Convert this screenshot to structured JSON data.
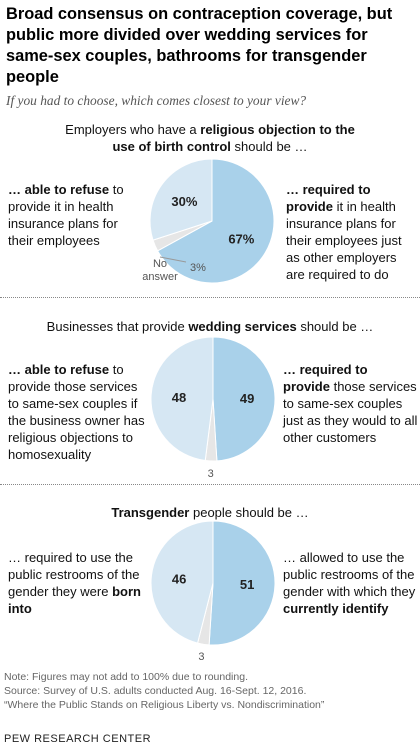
{
  "title": "Broad consensus on contraception coverage, but public more divided over wedding services for same-sex couples, bathrooms for transgender people",
  "subtitle": "If you had to choose, which comes closest to your view?",
  "colors": {
    "dark": "#a9d1ea",
    "light": "#d6e7f3",
    "tiny": "#e6e6e6",
    "line": "#999999"
  },
  "panels": [
    {
      "heading_pre": "Employers who have a ",
      "heading_bold": "religious objection to the use of birth control",
      "heading_post": " should be …",
      "left_bold": "… able to refuse",
      "left_rest": " to provide it in health insurance plans for their employees",
      "right_bold": "… required to provide",
      "right_rest": " it in health insurance plans for their employees just as other employers are required to do",
      "noanswer_label": "No answer"
    },
    {
      "heading_pre": "Businesses that provide ",
      "heading_bold": "wedding services",
      "heading_post": " should be …",
      "left_bold": "… able to refuse",
      "left_rest": " to provide those services to same-sex couples if the business owner has religious objections to homosexuality",
      "right_bold": "… required to provide",
      "right_rest": " those services to same-sex couples just as they would to all other customers"
    },
    {
      "heading_pre": "",
      "heading_bold": "Transgender",
      "heading_post": " people should be …",
      "left_pre": "… required to use the public restrooms of the gender they were ",
      "left_bold": "born into",
      "right_pre": "… allowed to use the public restrooms of the gender with which they ",
      "right_bold": "currently identify"
    }
  ],
  "chart_data": [
    {
      "type": "pie",
      "slices": [
        {
          "label": "required to provide",
          "value": 67,
          "display": "67%"
        },
        {
          "label": "No answer",
          "value": 3,
          "display": "3%"
        },
        {
          "label": "able to refuse",
          "value": 30,
          "display": "30%"
        }
      ]
    },
    {
      "type": "pie",
      "slices": [
        {
          "label": "required to provide",
          "value": 49,
          "display": "49"
        },
        {
          "label": "No answer",
          "value": 3,
          "display": "3"
        },
        {
          "label": "able to refuse",
          "value": 48,
          "display": "48"
        }
      ]
    },
    {
      "type": "pie",
      "slices": [
        {
          "label": "allowed to use restrooms of current gender",
          "value": 51,
          "display": "51"
        },
        {
          "label": "No answer",
          "value": 3,
          "display": "3"
        },
        {
          "label": "required to use restrooms of birth gender",
          "value": 46,
          "display": "46"
        }
      ]
    }
  ],
  "footer": {
    "note": "Note: Figures may not add to 100% due to rounding.",
    "source": "Source: Survey of U.S. adults conducted Aug. 16-Sept. 12, 2016.",
    "report": "“Where the Public Stands on Religious Liberty vs. Nondiscrimination”",
    "brand": "PEW RESEARCH CENTER"
  }
}
